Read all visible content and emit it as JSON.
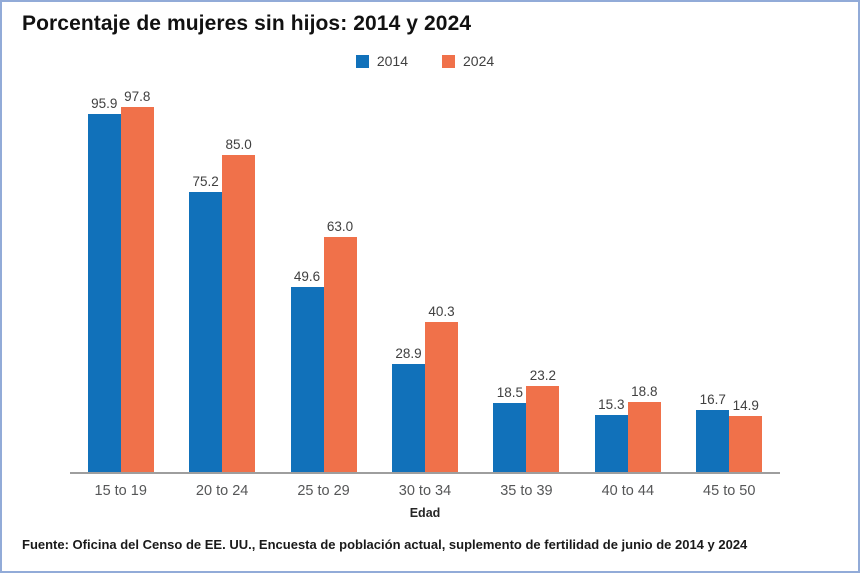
{
  "title": "Porcentaje de mujeres sin hijos: 2014 y 2024",
  "source": "Fuente: Oficina del Censo de EE. UU., Encuesta de población actual, suplemento de fertilidad de junio de 2014 y 2024",
  "colors": {
    "series_2014": "#1171ba",
    "series_2024": "#f0714a",
    "frame_border": "#92abd8",
    "axis_line": "#9e9e9e",
    "label_text": "#404040"
  },
  "chart_data": {
    "type": "bar",
    "title": "Porcentaje de mujeres sin hijos: 2014 y 2024",
    "categories": [
      "15 to 19",
      "20 to 24",
      "25 to 29",
      "30 to 34",
      "35 to 39",
      "40 to 44",
      "45 to 50"
    ],
    "series": [
      {
        "name": "2014",
        "color": "#1171ba",
        "values": [
          95.9,
          75.2,
          49.6,
          28.9,
          18.5,
          15.3,
          16.7
        ]
      },
      {
        "name": "2024",
        "color": "#f0714a",
        "values": [
          97.8,
          85.0,
          63.0,
          40.3,
          23.2,
          18.8,
          14.9
        ]
      }
    ],
    "xlabel": "Edad",
    "ylabel": "",
    "ylim": [
      0,
      100
    ],
    "grid": false,
    "legend_position": "top",
    "value_labels": true
  }
}
